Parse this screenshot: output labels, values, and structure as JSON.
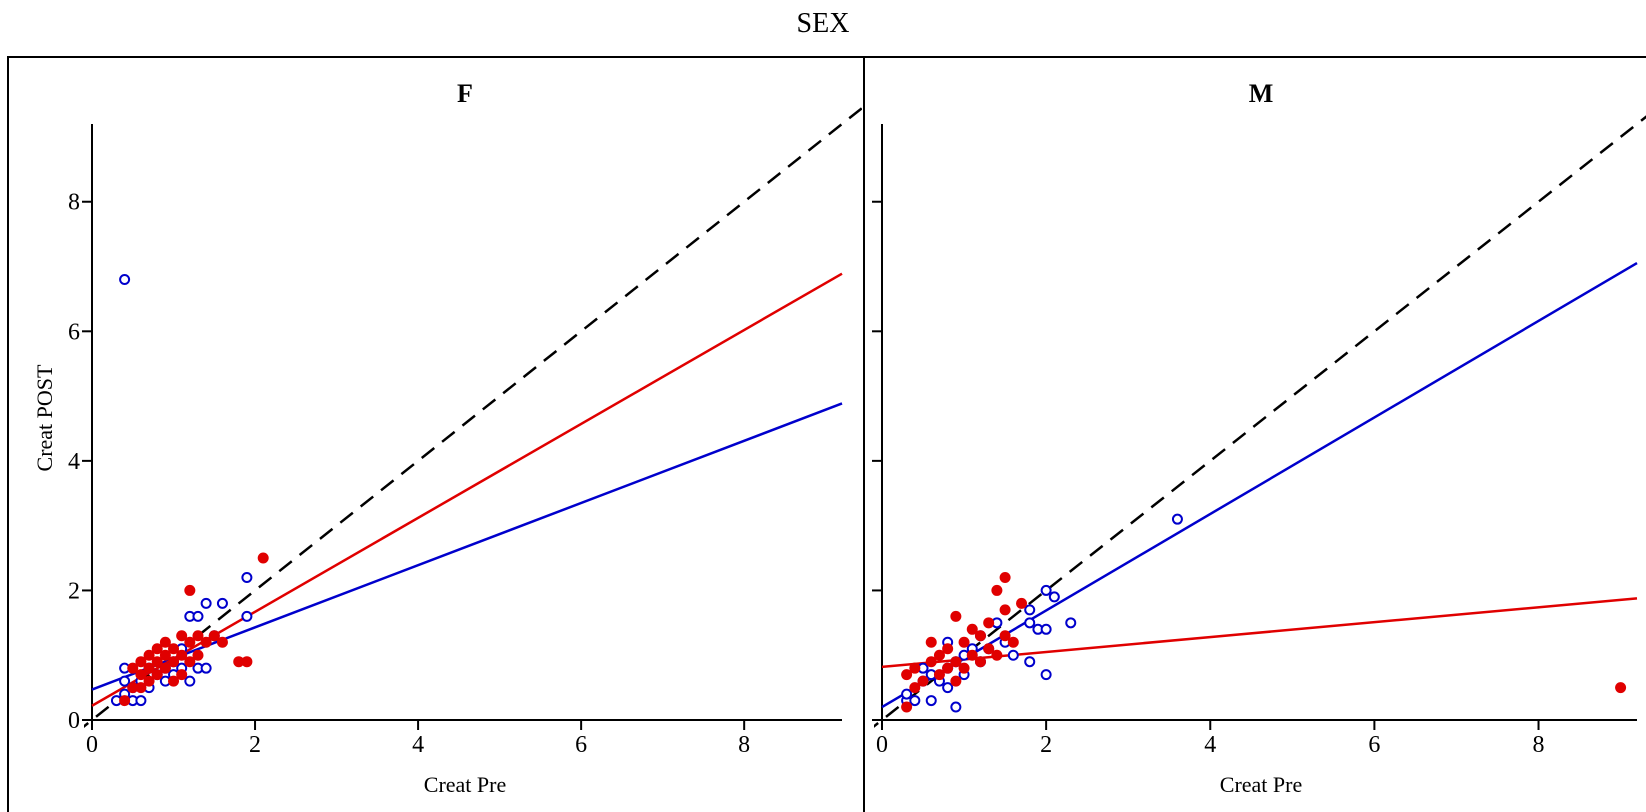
{
  "chart_data": {
    "type": "scatter",
    "title": "SEX",
    "ylabel": "Creat POST",
    "xlim": [
      0,
      9.2
    ],
    "ylim": [
      0,
      9.2
    ],
    "x_ticks": [
      0,
      2,
      4,
      6,
      8
    ],
    "y_ticks": [
      0,
      2,
      4,
      6,
      8
    ],
    "grid": false,
    "reference_line": {
      "style": "dashed",
      "color": "#000000",
      "slope": 1,
      "intercept": 0
    },
    "colors": {
      "open_series": "#0000cc",
      "filled_series": "#e00000"
    },
    "panels": [
      {
        "name": "F",
        "xlabel": "Creat Pre",
        "show_y_tick_labels": true,
        "open_points": [
          [
            0.4,
            6.8
          ],
          [
            0.3,
            0.3
          ],
          [
            0.4,
            0.4
          ],
          [
            0.4,
            0.6
          ],
          [
            0.5,
            0.3
          ],
          [
            0.5,
            0.5
          ],
          [
            0.6,
            0.3
          ],
          [
            0.6,
            0.6
          ],
          [
            0.7,
            0.5
          ],
          [
            0.7,
            0.8
          ],
          [
            0.8,
            0.7
          ],
          [
            0.9,
            0.6
          ],
          [
            0.9,
            0.8
          ],
          [
            1.0,
            0.9
          ],
          [
            1.0,
            0.7
          ],
          [
            1.1,
            0.8
          ],
          [
            1.1,
            1.1
          ],
          [
            1.2,
            0.6
          ],
          [
            1.2,
            1.6
          ],
          [
            1.3,
            1.6
          ],
          [
            1.3,
            0.8
          ],
          [
            1.4,
            1.8
          ],
          [
            1.4,
            0.8
          ],
          [
            1.5,
            1.3
          ],
          [
            1.6,
            1.8
          ],
          [
            1.9,
            2.2
          ],
          [
            1.9,
            1.6
          ],
          [
            0.4,
            0.8
          ]
        ],
        "filled_points": [
          [
            0.4,
            0.3
          ],
          [
            0.5,
            0.5
          ],
          [
            0.5,
            0.8
          ],
          [
            0.6,
            0.7
          ],
          [
            0.6,
            0.9
          ],
          [
            0.7,
            0.6
          ],
          [
            0.7,
            0.8
          ],
          [
            0.8,
            0.7
          ],
          [
            0.8,
            0.9
          ],
          [
            0.8,
            1.1
          ],
          [
            0.9,
            0.8
          ],
          [
            0.9,
            1.0
          ],
          [
            0.9,
            1.2
          ],
          [
            1.0,
            0.6
          ],
          [
            1.0,
            0.9
          ],
          [
            1.0,
            1.1
          ],
          [
            1.1,
            0.7
          ],
          [
            1.1,
            1.0
          ],
          [
            1.1,
            1.3
          ],
          [
            1.2,
            2.0
          ],
          [
            1.2,
            0.9
          ],
          [
            1.2,
            1.2
          ],
          [
            1.3,
            1.0
          ],
          [
            1.3,
            1.3
          ],
          [
            1.4,
            1.2
          ],
          [
            1.5,
            1.3
          ],
          [
            1.6,
            1.2
          ],
          [
            1.8,
            0.9
          ],
          [
            1.9,
            0.9
          ],
          [
            2.1,
            2.5
          ],
          [
            0.7,
            1.0
          ],
          [
            0.6,
            0.5
          ]
        ],
        "open_fit": {
          "intercept": 0.47,
          "slope": 0.48
        },
        "filled_fit": {
          "intercept": 0.22,
          "slope": 0.725
        }
      },
      {
        "name": "M",
        "xlabel": "Creat Pre",
        "show_y_tick_labels": false,
        "open_points": [
          [
            0.3,
            0.3
          ],
          [
            0.3,
            0.4
          ],
          [
            0.4,
            0.3
          ],
          [
            0.5,
            0.6
          ],
          [
            0.5,
            0.8
          ],
          [
            0.6,
            0.3
          ],
          [
            0.6,
            0.7
          ],
          [
            0.7,
            0.6
          ],
          [
            0.8,
            0.5
          ],
          [
            0.8,
            0.8
          ],
          [
            0.8,
            1.2
          ],
          [
            0.9,
            0.2
          ],
          [
            0.9,
            0.9
          ],
          [
            1.0,
            1.0
          ],
          [
            1.0,
            0.7
          ],
          [
            1.1,
            1.1
          ],
          [
            1.2,
            0.9
          ],
          [
            1.2,
            1.3
          ],
          [
            1.3,
            1.1
          ],
          [
            1.4,
            1.5
          ],
          [
            1.5,
            1.2
          ],
          [
            1.6,
            1.0
          ],
          [
            1.8,
            1.7
          ],
          [
            1.8,
            1.5
          ],
          [
            1.8,
            0.9
          ],
          [
            1.9,
            1.4
          ],
          [
            2.0,
            1.4
          ],
          [
            2.0,
            2.0
          ],
          [
            2.0,
            0.7
          ],
          [
            2.1,
            1.9
          ],
          [
            2.3,
            1.5
          ],
          [
            3.6,
            3.1
          ]
        ],
        "filled_points": [
          [
            0.3,
            0.2
          ],
          [
            0.3,
            0.7
          ],
          [
            0.4,
            0.5
          ],
          [
            0.4,
            0.8
          ],
          [
            0.5,
            0.6
          ],
          [
            0.6,
            0.9
          ],
          [
            0.6,
            1.2
          ],
          [
            0.7,
            0.7
          ],
          [
            0.7,
            1.0
          ],
          [
            0.8,
            0.8
          ],
          [
            0.8,
            1.1
          ],
          [
            0.9,
            0.9
          ],
          [
            0.9,
            1.6
          ],
          [
            0.9,
            0.6
          ],
          [
            1.0,
            0.8
          ],
          [
            1.0,
            1.2
          ],
          [
            1.1,
            1.0
          ],
          [
            1.1,
            1.4
          ],
          [
            1.2,
            1.3
          ],
          [
            1.2,
            0.9
          ],
          [
            1.3,
            1.1
          ],
          [
            1.3,
            1.5
          ],
          [
            1.4,
            1.0
          ],
          [
            1.4,
            2.0
          ],
          [
            1.5,
            1.3
          ],
          [
            1.5,
            2.2
          ],
          [
            1.5,
            1.7
          ],
          [
            1.6,
            1.2
          ],
          [
            1.7,
            1.8
          ],
          [
            9.0,
            0.5
          ]
        ],
        "open_fit": {
          "intercept": 0.2,
          "slope": 0.745
        },
        "filled_fit": {
          "intercept": 0.82,
          "slope": 0.115
        }
      }
    ]
  }
}
